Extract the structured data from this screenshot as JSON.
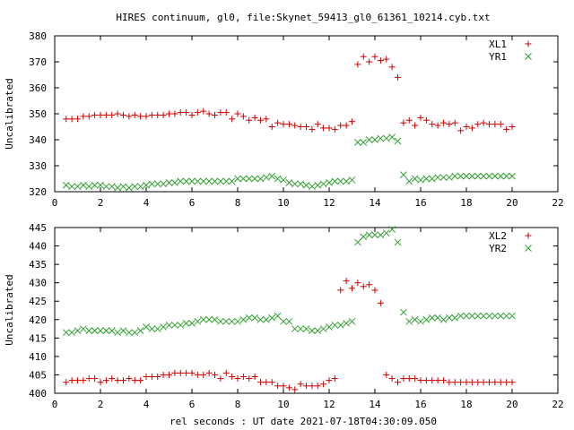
{
  "title": "HIRES continuum, gl0, file:Skynet_59413_gl0_61361_10214.cyb.txt",
  "xlabel": "rel seconds : UT date 2021-07-18T04:30:09.050",
  "colors": {
    "XL": "#cc0000",
    "YR": "#2e9e2e"
  },
  "chart_data": [
    {
      "type": "scatter",
      "ylabel": "Uncalibrated",
      "xlim": [
        0,
        22
      ],
      "ylim": [
        320,
        380
      ],
      "xticks": [
        0,
        2,
        4,
        6,
        8,
        10,
        12,
        14,
        16,
        18,
        20,
        22
      ],
      "yticks": [
        320,
        330,
        340,
        350,
        360,
        370,
        380
      ],
      "series": [
        {
          "name": "XL1",
          "marker": "plus",
          "color": "#cc0000",
          "x": [
            0.5,
            0.75,
            1.0,
            1.25,
            1.5,
            1.75,
            2.0,
            2.25,
            2.5,
            2.75,
            3.0,
            3.25,
            3.5,
            3.75,
            4.0,
            4.25,
            4.5,
            4.75,
            5.0,
            5.25,
            5.5,
            5.75,
            6.0,
            6.25,
            6.5,
            6.75,
            7.0,
            7.25,
            7.5,
            7.75,
            8.0,
            8.25,
            8.5,
            8.75,
            9.0,
            9.25,
            9.5,
            9.75,
            10.0,
            10.25,
            10.5,
            10.75,
            11.0,
            11.25,
            11.5,
            11.75,
            12.0,
            12.25,
            12.5,
            12.75,
            13.0,
            13.25,
            13.5,
            13.75,
            14.0,
            14.25,
            14.5,
            14.75,
            15.0,
            15.25,
            15.5,
            15.75,
            16.0,
            16.25,
            16.5,
            16.75,
            17.0,
            17.25,
            17.5,
            17.75,
            18.0,
            18.25,
            18.5,
            18.75,
            19.0,
            19.25,
            19.5,
            19.75,
            20.0
          ],
          "y": [
            348,
            348,
            348,
            349,
            349,
            349.5,
            349.5,
            349.5,
            349.5,
            350,
            349.5,
            349,
            349.5,
            349,
            349,
            349.5,
            349.5,
            349.5,
            350,
            350,
            350.5,
            350.5,
            349.5,
            350.5,
            351,
            350,
            349.5,
            350.5,
            350.5,
            348,
            350,
            349,
            347.5,
            348.5,
            347.5,
            348,
            345,
            346.5,
            346,
            346,
            345.5,
            345,
            345,
            344,
            346,
            344.5,
            344.5,
            344,
            345.5,
            345.5,
            347,
            369,
            372,
            370,
            372,
            370.5,
            371,
            368,
            364,
            346.5,
            347.5,
            345.5,
            348.5,
            347.5,
            346,
            345.5,
            346.5,
            346,
            346.5,
            343.5,
            345,
            344.5,
            346,
            346.5,
            346,
            346,
            346,
            344,
            345
          ]
        },
        {
          "name": "YR1",
          "marker": "cross",
          "color": "#2e9e2e",
          "x": [
            0.5,
            0.75,
            1.0,
            1.25,
            1.5,
            1.75,
            2.0,
            2.25,
            2.5,
            2.75,
            3.0,
            3.25,
            3.5,
            3.75,
            4.0,
            4.25,
            4.5,
            4.75,
            5.0,
            5.25,
            5.5,
            5.75,
            6.0,
            6.25,
            6.5,
            6.75,
            7.0,
            7.25,
            7.5,
            7.75,
            8.0,
            8.25,
            8.5,
            8.75,
            9.0,
            9.25,
            9.5,
            9.75,
            10.0,
            10.25,
            10.5,
            10.75,
            11.0,
            11.25,
            11.5,
            11.75,
            12.0,
            12.25,
            12.5,
            12.75,
            13.0,
            13.25,
            13.5,
            13.75,
            14.0,
            14.25,
            14.5,
            14.75,
            15.0,
            15.25,
            15.5,
            15.75,
            16.0,
            16.25,
            16.5,
            16.75,
            17.0,
            17.25,
            17.5,
            17.75,
            18.0,
            18.25,
            18.5,
            18.75,
            19.0,
            19.25,
            19.5,
            19.75,
            20.0
          ],
          "y": [
            322.5,
            322,
            322,
            322.5,
            322,
            322.5,
            322.5,
            322,
            322,
            321.5,
            322,
            321.5,
            322,
            322,
            322.5,
            323,
            323,
            323,
            323.5,
            323.5,
            324,
            324,
            324,
            324,
            324,
            324,
            324,
            324,
            324,
            324,
            325,
            325,
            325,
            325,
            325,
            325.5,
            326,
            325,
            324.5,
            323.5,
            323,
            323,
            322.5,
            322,
            322.5,
            323,
            323.5,
            324,
            324,
            324,
            324.5,
            339,
            339,
            340,
            340,
            340.5,
            340.5,
            341,
            339.5,
            326.5,
            324,
            325,
            324.5,
            325,
            325,
            325.5,
            325.5,
            325.5,
            326,
            326,
            326,
            326,
            326,
            326,
            326,
            326,
            326,
            326,
            326
          ]
        }
      ]
    },
    {
      "type": "scatter",
      "ylabel": "Uncalibrated",
      "xlim": [
        0,
        22
      ],
      "ylim": [
        400,
        445
      ],
      "xticks": [
        0,
        2,
        4,
        6,
        8,
        10,
        12,
        14,
        16,
        18,
        20,
        22
      ],
      "yticks": [
        400,
        405,
        410,
        415,
        420,
        425,
        430,
        435,
        440,
        445
      ],
      "series": [
        {
          "name": "XL2",
          "marker": "plus",
          "color": "#cc0000",
          "x": [
            0.5,
            0.75,
            1.0,
            1.25,
            1.5,
            1.75,
            2.0,
            2.25,
            2.5,
            2.75,
            3.0,
            3.25,
            3.5,
            3.75,
            4.0,
            4.25,
            4.5,
            4.75,
            5.0,
            5.25,
            5.5,
            5.75,
            6.0,
            6.25,
            6.5,
            6.75,
            7.0,
            7.25,
            7.5,
            7.75,
            8.0,
            8.25,
            8.5,
            8.75,
            9.0,
            9.25,
            9.5,
            9.75,
            10.0,
            10.25,
            10.5,
            10.75,
            11.0,
            11.25,
            11.5,
            11.75,
            12.0,
            12.25,
            12.5,
            12.75,
            13.0,
            13.25,
            13.5,
            13.75,
            14.0,
            14.25,
            14.5,
            14.75,
            15.0,
            15.25,
            15.5,
            15.75,
            16.0,
            16.25,
            16.5,
            16.75,
            17.0,
            17.25,
            17.5,
            17.75,
            18.0,
            18.25,
            18.5,
            18.75,
            19.0,
            19.25,
            19.5,
            19.75,
            20.0
          ],
          "y": [
            403,
            403.5,
            403.5,
            403.5,
            404,
            404,
            403,
            403.5,
            404,
            403.5,
            403.5,
            404,
            403.5,
            403.5,
            404.5,
            404.5,
            404.5,
            405,
            405,
            405.5,
            405.5,
            405.5,
            405.5,
            405,
            405,
            405.5,
            405,
            404,
            405.5,
            404.5,
            404,
            404.5,
            404,
            404.5,
            403,
            403,
            403,
            402,
            402,
            401.5,
            401,
            402.5,
            402,
            402,
            402,
            402.5,
            403.5,
            404,
            428,
            430.5,
            428.5,
            430,
            429,
            429.5,
            428,
            424.5,
            405,
            404,
            403,
            404,
            404,
            404,
            403.5,
            403.5,
            403.5,
            403.5,
            403.5,
            403,
            403,
            403,
            403,
            403,
            403,
            403,
            403,
            403,
            403,
            403,
            403
          ]
        },
        {
          "name": "YR2",
          "marker": "cross",
          "color": "#2e9e2e",
          "x": [
            0.5,
            0.75,
            1.0,
            1.25,
            1.5,
            1.75,
            2.0,
            2.25,
            2.5,
            2.75,
            3.0,
            3.25,
            3.5,
            3.75,
            4.0,
            4.25,
            4.5,
            4.75,
            5.0,
            5.25,
            5.5,
            5.75,
            6.0,
            6.25,
            6.5,
            6.75,
            7.0,
            7.25,
            7.5,
            7.75,
            8.0,
            8.25,
            8.5,
            8.75,
            9.0,
            9.25,
            9.5,
            9.75,
            10.0,
            10.25,
            10.5,
            10.75,
            11.0,
            11.25,
            11.5,
            11.75,
            12.0,
            12.25,
            12.5,
            12.75,
            13.0,
            13.25,
            13.5,
            13.75,
            14.0,
            14.25,
            14.5,
            14.75,
            15.0,
            15.25,
            15.5,
            15.75,
            16.0,
            16.25,
            16.5,
            16.75,
            17.0,
            17.25,
            17.5,
            17.75,
            18.0,
            18.25,
            18.5,
            18.75,
            19.0,
            19.25,
            19.5,
            19.75,
            20.0
          ],
          "y": [
            416.5,
            416.5,
            417,
            417.5,
            417,
            417,
            417,
            417,
            417,
            416.5,
            417,
            416.5,
            416.5,
            417,
            418,
            417.5,
            417.5,
            418,
            418.5,
            418.5,
            418.5,
            419,
            419,
            419.5,
            420,
            420,
            420,
            419.5,
            419.5,
            419.5,
            419.5,
            420,
            420.5,
            420.5,
            420,
            420,
            420.5,
            421,
            419.5,
            419.5,
            417.5,
            417.5,
            417.5,
            417,
            417,
            417.5,
            418,
            418.5,
            418.5,
            419,
            419.5,
            441,
            442.5,
            443,
            443,
            443,
            443.5,
            444.5,
            441,
            422,
            419.5,
            420,
            419.5,
            420,
            420.5,
            420.5,
            420,
            420.5,
            420.5,
            421,
            421,
            421,
            421,
            421,
            421,
            421,
            421,
            421,
            421
          ]
        }
      ]
    }
  ]
}
